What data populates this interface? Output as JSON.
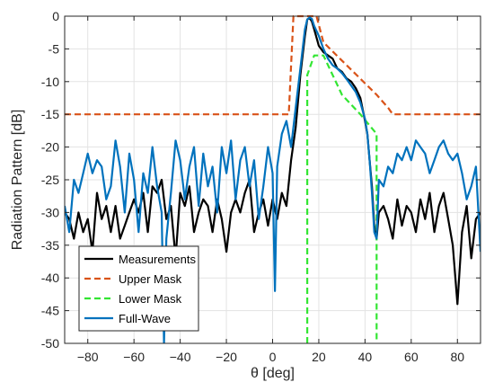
{
  "chart_data": {
    "type": "line",
    "xlabel": "θ [deg]",
    "ylabel": "Radiation Pattern [dB]",
    "xlim": [
      -90,
      90
    ],
    "ylim": [
      -50,
      0
    ],
    "xticks": [
      -80,
      -60,
      -40,
      -20,
      0,
      20,
      40,
      60,
      80
    ],
    "yticks": [
      0,
      -5,
      -10,
      -15,
      -20,
      -25,
      -30,
      -35,
      -40,
      -45,
      -50
    ],
    "grid": true,
    "legend_position": "bottom-left",
    "series": [
      {
        "name": "Measurements",
        "color": "#000000",
        "style": "solid",
        "x": [
          -90,
          -88,
          -86,
          -84,
          -82,
          -80,
          -78,
          -76,
          -74,
          -72,
          -70,
          -68,
          -66,
          -64,
          -62,
          -60,
          -58,
          -56,
          -54,
          -52,
          -50,
          -48,
          -46,
          -44,
          -42,
          -40,
          -38,
          -36,
          -34,
          -32,
          -30,
          -28,
          -26,
          -24,
          -22,
          -20,
          -18,
          -16,
          -14,
          -12,
          -10,
          -8,
          -6,
          -4,
          -2,
          0,
          2,
          4,
          6,
          8,
          10,
          12,
          14,
          15,
          16,
          17,
          18,
          20,
          22,
          24,
          26,
          28,
          30,
          32,
          34,
          36,
          38,
          40,
          41,
          42,
          43,
          44,
          45,
          46,
          48,
          50,
          52,
          54,
          56,
          58,
          60,
          62,
          64,
          66,
          68,
          70,
          72,
          74,
          76,
          78,
          80,
          82,
          84,
          86,
          88,
          90
        ],
        "y": [
          -30,
          -31,
          -34,
          -30,
          -33,
          -31,
          -36,
          -27,
          -31,
          -29,
          -33,
          -29,
          -34,
          -32,
          -30,
          -28,
          -30,
          -27,
          -33,
          -26,
          -27,
          -25,
          -31,
          -29,
          -37,
          -27,
          -29,
          -26,
          -33,
          -30,
          -28,
          -29,
          -33,
          -28,
          -31,
          -36,
          -30,
          -28,
          -30,
          -27,
          -25,
          -33,
          -30,
          -28,
          -32,
          -28,
          -31,
          -27,
          -29,
          -22,
          -17,
          -9,
          -3,
          -0.5,
          -0.3,
          -0.8,
          -2,
          -4.5,
          -5.5,
          -6,
          -6.5,
          -8,
          -8.5,
          -9.5,
          -10,
          -11,
          -12.5,
          -16,
          -18,
          -22,
          -26,
          -32,
          -34,
          -30,
          -29,
          -31,
          -34,
          -28,
          -32,
          -29,
          -30,
          -33,
          -28,
          -31,
          -27,
          -33,
          -29,
          -27,
          -31,
          -35,
          -44,
          -33,
          -29,
          -37,
          -31,
          -30
        ]
      },
      {
        "name": "Upper Mask",
        "color": "#d95319",
        "style": "dashed",
        "x": [
          -90,
          7,
          9,
          14,
          19,
          22,
          45,
          50,
          52,
          90
        ],
        "y": [
          -15,
          -15,
          0,
          0,
          0,
          -4,
          -12,
          -14,
          -15,
          -15
        ]
      },
      {
        "name": "Lower Mask",
        "color": "#33e633",
        "style": "dashed",
        "x": [
          15,
          15,
          18,
          22,
          30,
          38,
          45,
          45
        ],
        "y": [
          -50,
          -9,
          -6,
          -6,
          -12,
          -15,
          -18,
          -50
        ]
      },
      {
        "name": "Full-Wave",
        "color": "#0072bd",
        "style": "solid",
        "x": [
          -90,
          -88,
          -86,
          -84,
          -82,
          -80,
          -78,
          -76,
          -74,
          -72,
          -70,
          -68,
          -66,
          -64,
          -62,
          -60,
          -58,
          -56,
          -54,
          -52,
          -50,
          -48,
          -47,
          -46,
          -44,
          -42,
          -40,
          -38,
          -36,
          -34,
          -32,
          -30,
          -28,
          -26,
          -24,
          -22,
          -20,
          -18,
          -16,
          -14,
          -12,
          -10,
          -8,
          -6,
          -4,
          -2,
          0,
          1,
          2,
          4,
          6,
          8,
          10,
          12,
          14,
          15,
          16,
          17,
          18,
          20,
          22,
          24,
          26,
          28,
          30,
          32,
          34,
          36,
          38,
          40,
          41,
          42,
          43,
          44,
          45,
          46,
          48,
          50,
          52,
          54,
          56,
          58,
          60,
          62,
          64,
          66,
          68,
          70,
          72,
          74,
          76,
          78,
          80,
          82,
          84,
          86,
          88,
          90
        ],
        "y": [
          -29,
          -33,
          -25,
          -27,
          -24,
          -21,
          -24,
          -22,
          -23,
          -28,
          -26,
          -19,
          -23,
          -30,
          -21,
          -25,
          -33,
          -24,
          -27,
          -20,
          -26,
          -30,
          -50,
          -34,
          -27,
          -19,
          -22,
          -28,
          -23,
          -20,
          -29,
          -21,
          -26,
          -23,
          -30,
          -20,
          -24,
          -19,
          -28,
          -22,
          -20,
          -26,
          -22,
          -31,
          -26,
          -20,
          -24,
          -42,
          -23,
          -18,
          -16,
          -20,
          -14,
          -8,
          -2,
          -0.5,
          -0.2,
          -0.4,
          -1.5,
          -3,
          -5,
          -6.5,
          -7.5,
          -8,
          -8.7,
          -9.6,
          -10.6,
          -11.6,
          -13.2,
          -15.7,
          -18,
          -22,
          -27,
          -33,
          -34,
          -25,
          -26,
          -23,
          -24,
          -21,
          -22,
          -20,
          -22,
          -19,
          -20,
          -21,
          -24,
          -22,
          -20,
          -19,
          -21,
          -22,
          -21,
          -24,
          -28,
          -26,
          -23,
          -36
        ]
      }
    ]
  }
}
